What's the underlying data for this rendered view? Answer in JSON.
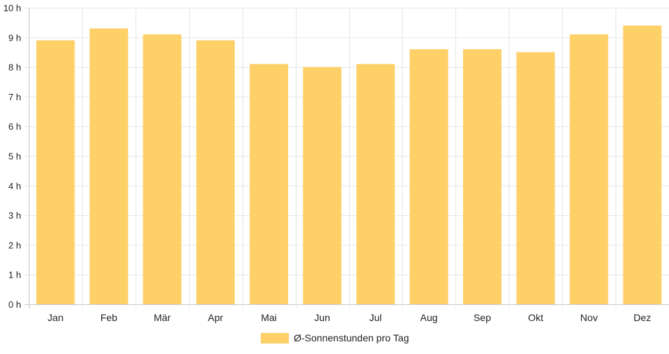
{
  "chart_data": {
    "type": "bar",
    "categories": [
      "Jan",
      "Feb",
      "Mär",
      "Apr",
      "Mai",
      "Jun",
      "Jul",
      "Aug",
      "Sep",
      "Okt",
      "Nov",
      "Dez"
    ],
    "series": [
      {
        "name": "Ø-Sonnenstunden pro Tag",
        "values": [
          8.9,
          9.3,
          9.1,
          8.9,
          8.1,
          8.0,
          8.1,
          8.6,
          8.6,
          8.5,
          9.1,
          9.4
        ]
      }
    ],
    "ylim": [
      0,
      10
    ],
    "yticks": [
      0,
      1,
      2,
      3,
      4,
      5,
      6,
      7,
      8,
      9,
      10
    ],
    "y_tick_suffix": " h",
    "grid": true,
    "legend_position": "bottom",
    "colors": {
      "bar": "#fdd068",
      "grid": "#e6e6e6",
      "axis": "#c8c8c8"
    }
  }
}
